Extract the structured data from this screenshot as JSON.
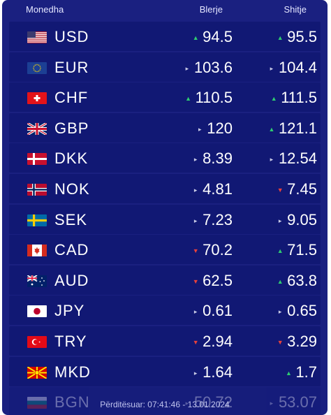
{
  "header": {
    "currency": "Monedha",
    "buy": "Blerje",
    "sell": "Shitje"
  },
  "rows": [
    {
      "code": "USD",
      "flag": "us-flag",
      "buy": "94.5",
      "buy_trend": "up",
      "sell": "95.5",
      "sell_trend": "up"
    },
    {
      "code": "EUR",
      "flag": "eu-flag",
      "buy": "103.6",
      "buy_trend": "neutral",
      "sell": "104.4",
      "sell_trend": "neutral"
    },
    {
      "code": "CHF",
      "flag": "ch-flag",
      "buy": "110.5",
      "buy_trend": "up",
      "sell": "111.5",
      "sell_trend": "up"
    },
    {
      "code": "GBP",
      "flag": "gb-flag",
      "buy": "120",
      "buy_trend": "neutral",
      "sell": "121.1",
      "sell_trend": "up"
    },
    {
      "code": "DKK",
      "flag": "dk-flag",
      "buy": "8.39",
      "buy_trend": "neutral",
      "sell": "12.54",
      "sell_trend": "neutral"
    },
    {
      "code": "NOK",
      "flag": "no-flag",
      "buy": "4.81",
      "buy_trend": "neutral",
      "sell": "7.45",
      "sell_trend": "down"
    },
    {
      "code": "SEK",
      "flag": "se-flag",
      "buy": "7.23",
      "buy_trend": "neutral",
      "sell": "9.05",
      "sell_trend": "neutral"
    },
    {
      "code": "CAD",
      "flag": "ca-flag",
      "buy": "70.2",
      "buy_trend": "down",
      "sell": "71.5",
      "sell_trend": "up"
    },
    {
      "code": "AUD",
      "flag": "au-flag",
      "buy": "62.5",
      "buy_trend": "down",
      "sell": "63.8",
      "sell_trend": "up"
    },
    {
      "code": "JPY",
      "flag": "jp-flag",
      "buy": "0.61",
      "buy_trend": "neutral",
      "sell": "0.65",
      "sell_trend": "neutral"
    },
    {
      "code": "TRY",
      "flag": "tr-flag",
      "buy": "2.94",
      "buy_trend": "down",
      "sell": "3.29",
      "sell_trend": "down"
    },
    {
      "code": "MKD",
      "flag": "mk-flag",
      "buy": "1.64",
      "buy_trend": "neutral",
      "sell": "1.7",
      "sell_trend": "up"
    },
    {
      "code": "BGN",
      "flag": "bg-flag",
      "buy": "50.72",
      "buy_trend": "neutral",
      "sell": "53.07",
      "sell_trend": "neutral"
    }
  ],
  "footer": {
    "updated": "Përditësuar: 07:41:46 - 13.01.2024"
  },
  "colors": {
    "panel": "#1a2080",
    "row": "#111874",
    "up": "#2ecc71",
    "down": "#e8413c"
  }
}
